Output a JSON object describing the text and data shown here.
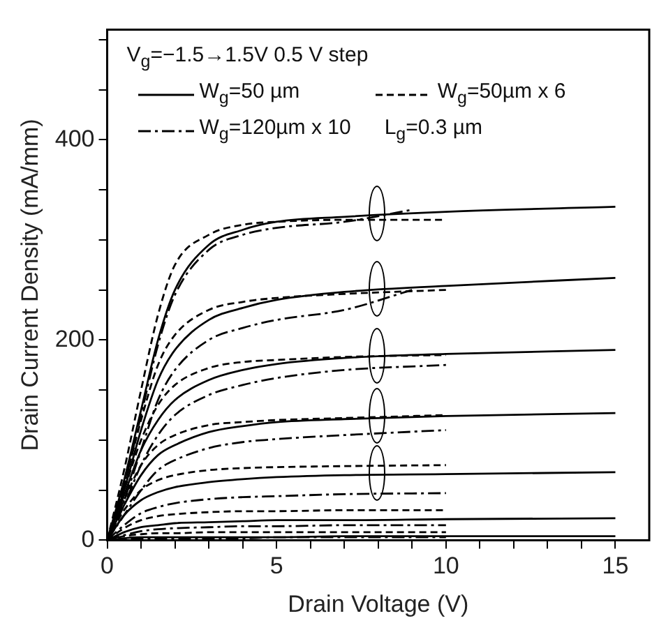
{
  "chart_data": {
    "type": "line",
    "xlabel": "Drain Voltage (V)",
    "ylabel": "Drain Current Density (mA/mm)",
    "annotations": [
      "V$_{g}$=−1.5→1.5V  0.5 V step",
      "L$_{g}$=0.3 µm"
    ],
    "x": [
      0,
      0.5,
      1,
      1.5,
      2,
      3,
      4,
      5,
      7,
      10,
      15
    ],
    "xlim": [
      0,
      16
    ],
    "xticks": [
      0,
      {
        "value": 1,
        "label": null
      },
      {
        "value": 2,
        "label": null
      },
      {
        "value": 3,
        "label": null
      },
      {
        "value": 4,
        "label": null
      },
      5,
      {
        "value": 6,
        "label": null
      },
      {
        "value": 7,
        "label": null
      },
      {
        "value": 8,
        "label": null
      },
      {
        "value": 9,
        "label": null
      },
      10,
      {
        "value": 11,
        "label": null
      },
      {
        "value": 12,
        "label": null
      },
      {
        "value": 13,
        "label": null
      },
      {
        "value": 14,
        "label": null
      },
      15
    ],
    "ylim": [
      0,
      510
    ],
    "yticks": [
      0,
      {
        "value": 50,
        "label": null
      },
      {
        "value": 100,
        "label": null
      },
      {
        "value": 150,
        "label": null
      },
      200,
      {
        "value": 250,
        "label": null
      },
      {
        "value": 300,
        "label": null
      },
      {
        "value": 350,
        "label": null
      },
      400,
      {
        "value": 450,
        "label": null
      },
      {
        "value": 500,
        "label": null
      }
    ],
    "grid": false,
    "legend": "top left",
    "marker": "none",
    "series": [
      {
        "name": "W$_{g}$=50 µm",
        "color": "#000000",
        "line_style": "solid",
        "values": [
          0,
          60,
          130,
          200,
          250,
          295,
          310,
          318,
          323,
          328,
          333
        ]
      },
      {
        "color": "#000000",
        "line_style": "solid",
        "values": [
          0,
          50,
          110,
          160,
          190,
          220,
          232,
          240,
          248,
          254,
          262
        ]
      },
      {
        "color": "#000000",
        "line_style": "solid",
        "values": [
          0,
          45,
          90,
          120,
          140,
          160,
          170,
          176,
          182,
          186,
          190
        ]
      },
      {
        "color": "#000000",
        "line_style": "solid",
        "values": [
          0,
          35,
          65,
          85,
          95,
          108,
          114,
          118,
          121,
          124,
          127
        ]
      },
      {
        "color": "#000000",
        "line_style": "solid",
        "values": [
          0,
          25,
          40,
          48,
          53,
          58,
          61,
          63,
          65,
          66,
          68
        ]
      },
      {
        "color": "#000000",
        "line_style": "solid",
        "values": [
          0,
          8,
          13,
          15,
          17,
          18,
          19,
          20,
          20,
          21,
          22
        ]
      },
      {
        "color": "#000000",
        "line_style": "solid",
        "values": [
          0,
          2,
          3,
          3,
          3,
          3,
          3,
          3,
          4,
          4,
          4
        ]
      },
      {
        "name": "W$_{g}$=50µm x 6",
        "color": "#000000",
        "line_style": "dashed",
        "x": [
          0,
          0.5,
          1,
          1.5,
          2,
          3,
          4,
          5,
          7,
          10
        ],
        "values": [
          0,
          70,
          150,
          225,
          275,
          305,
          315,
          318,
          320,
          320
        ]
      },
      {
        "color": "#000000",
        "line_style": "dashed",
        "x": [
          0,
          0.5,
          1,
          1.5,
          2,
          3,
          4,
          5,
          7,
          10
        ],
        "values": [
          0,
          55,
          120,
          175,
          205,
          230,
          238,
          242,
          246,
          250
        ]
      },
      {
        "color": "#000000",
        "line_style": "dashed",
        "x": [
          0,
          0.5,
          1,
          1.5,
          2,
          3,
          4,
          5,
          7,
          10
        ],
        "values": [
          0,
          50,
          100,
          135,
          155,
          172,
          178,
          180,
          183,
          185
        ]
      },
      {
        "color": "#000000",
        "line_style": "dashed",
        "x": [
          0,
          0.5,
          1,
          1.5,
          2,
          3,
          4,
          5,
          7,
          10
        ],
        "values": [
          0,
          40,
          75,
          95,
          105,
          115,
          118,
          120,
          122,
          125
        ]
      },
      {
        "color": "#000000",
        "line_style": "dashed",
        "x": [
          0,
          0.5,
          1,
          1.5,
          2,
          3,
          4,
          5,
          7,
          10
        ],
        "values": [
          0,
          30,
          50,
          60,
          65,
          70,
          72,
          73,
          74,
          75
        ]
      },
      {
        "color": "#000000",
        "line_style": "dashed",
        "x": [
          0,
          0.5,
          1,
          1.5,
          2,
          3,
          4,
          5,
          7,
          10
        ],
        "values": [
          0,
          12,
          20,
          24,
          26,
          28,
          29,
          29,
          30,
          30
        ]
      },
      {
        "color": "#000000",
        "line_style": "dashed",
        "x": [
          0,
          0.5,
          1,
          1.5,
          2,
          3,
          4,
          5,
          7,
          10
        ],
        "values": [
          0,
          4,
          6,
          7,
          7,
          8,
          8,
          8,
          8,
          8
        ]
      },
      {
        "name": "W$_{g}$=120µm x 10",
        "color": "#000000",
        "line_style": "dashdot",
        "x": [
          0,
          0.5,
          1,
          1.5,
          2,
          3,
          4,
          5,
          7,
          9
        ],
        "values": [
          0,
          55,
          125,
          195,
          245,
          290,
          305,
          312,
          318,
          330
        ]
      },
      {
        "color": "#000000",
        "line_style": "dashdot",
        "x": [
          0,
          0.5,
          1,
          1.5,
          2,
          3,
          4,
          5,
          7,
          9
        ],
        "values": [
          0,
          40,
          90,
          140,
          170,
          200,
          212,
          220,
          230,
          250
        ]
      },
      {
        "color": "#000000",
        "line_style": "dashdot",
        "x": [
          0,
          0.5,
          1,
          1.5,
          2,
          3,
          4,
          5,
          7,
          10
        ],
        "values": [
          0,
          35,
          75,
          105,
          125,
          145,
          155,
          162,
          170,
          175
        ]
      },
      {
        "color": "#000000",
        "line_style": "dashdot",
        "x": [
          0,
          0.5,
          1,
          1.5,
          2,
          3,
          4,
          5,
          7,
          10
        ],
        "values": [
          0,
          25,
          50,
          70,
          80,
          92,
          98,
          101,
          105,
          110
        ]
      },
      {
        "color": "#000000",
        "line_style": "dashdot",
        "x": [
          0,
          0.5,
          1,
          1.5,
          2,
          3,
          4,
          5,
          7,
          10
        ],
        "values": [
          0,
          15,
          27,
          33,
          37,
          41,
          43,
          44,
          46,
          47
        ]
      },
      {
        "color": "#000000",
        "line_style": "dashdot",
        "x": [
          0,
          0.5,
          1,
          1.5,
          2,
          3,
          4,
          5,
          7,
          10
        ],
        "values": [
          0,
          5,
          9,
          11,
          12,
          13,
          14,
          14,
          15,
          15
        ]
      },
      {
        "color": "#000000",
        "line_style": "dashdot",
        "x": [
          0,
          0.5,
          1,
          1.5,
          2,
          3,
          4,
          5,
          7,
          10
        ],
        "values": [
          0,
          1,
          2,
          2,
          2,
          2,
          2,
          3,
          3,
          3
        ]
      }
    ]
  }
}
